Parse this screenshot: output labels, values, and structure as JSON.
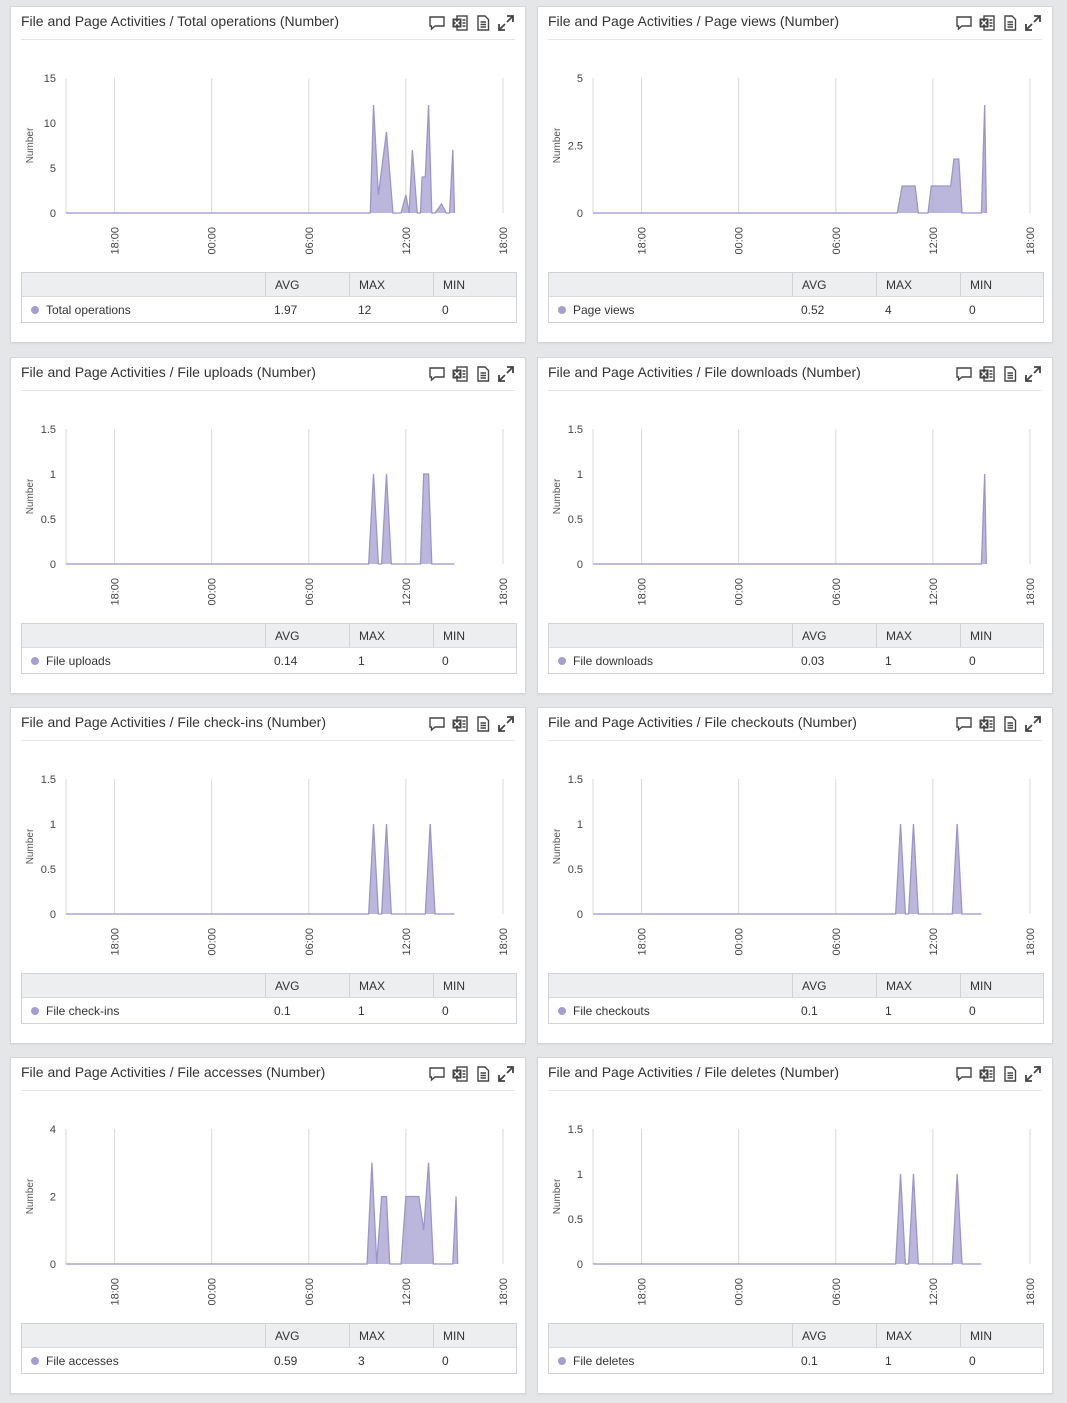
{
  "x_ticks": [
    "18:00",
    "00:00",
    "06:00",
    "12:00",
    "18:00"
  ],
  "legend_headers": {
    "avg": "AVG",
    "max": "MAX",
    "min": "MIN"
  },
  "colors": {
    "series": "#a49fd0",
    "series_line": "#9b95cc",
    "grid": "#d9d9d9"
  },
  "icons": [
    "comment-icon",
    "excel-export-icon",
    "document-icon",
    "expand-icon"
  ],
  "panels": [
    {
      "title": "File and Page Activities / Total operations (Number)",
      "series_name": "Total operations",
      "ylabel": "Number",
      "avg": "1.97",
      "max": "12",
      "min": "0",
      "chart_data": {
        "type": "area",
        "x_unit": "hours since 18:00",
        "x_range": [
          -3,
          24
        ],
        "ylim": [
          0,
          15
        ],
        "yticks": [
          "0",
          "5",
          "10",
          "15"
        ],
        "x": [
          -3,
          15.8,
          16.0,
          16.3,
          16.8,
          17.2,
          17.7,
          18.0,
          18.2,
          18.4,
          18.7,
          18.9,
          19.0,
          19.2,
          19.4,
          19.6,
          19.8,
          20.2,
          20.5,
          20.7,
          20.9,
          21.0
        ],
        "y": [
          0,
          0,
          12,
          2,
          9,
          0,
          0,
          2,
          0,
          7,
          0,
          0,
          4,
          4,
          12,
          0,
          0,
          1,
          0,
          0,
          7,
          0
        ]
      }
    },
    {
      "title": "File and Page Activities / Page views (Number)",
      "series_name": "Page views",
      "ylabel": "Number",
      "avg": "0.52",
      "max": "4",
      "min": "0",
      "chart_data": {
        "type": "area",
        "x_unit": "hours since 18:00",
        "x_range": [
          -3,
          24
        ],
        "ylim": [
          0,
          5
        ],
        "yticks": [
          "0",
          "2.5",
          "5"
        ],
        "x": [
          -3,
          15.8,
          16.1,
          16.9,
          17.1,
          17.7,
          17.9,
          19.1,
          19.3,
          19.6,
          19.8,
          21.0,
          21.2,
          21.3
        ],
        "y": [
          0,
          0,
          1,
          1,
          0,
          0,
          1,
          1,
          2,
          2,
          0,
          0,
          4,
          0
        ]
      }
    },
    {
      "title": "File and Page Activities / File uploads (Number)",
      "series_name": "File uploads",
      "ylabel": "Number",
      "avg": "0.14",
      "max": "1",
      "min": "0",
      "chart_data": {
        "type": "area",
        "x_unit": "hours since 18:00",
        "x_range": [
          -3,
          24
        ],
        "ylim": [
          0,
          1.5
        ],
        "yticks": [
          "0",
          "0.5",
          "1",
          "1.5"
        ],
        "x": [
          -3,
          15.7,
          16.0,
          16.3,
          16.5,
          16.8,
          17.1,
          18.9,
          19.1,
          19.4,
          19.6,
          21.0
        ],
        "y": [
          0,
          0,
          1,
          0,
          0,
          1,
          0,
          0,
          1,
          1,
          0,
          0
        ]
      }
    },
    {
      "title": "File and Page Activities / File downloads (Number)",
      "series_name": "File downloads",
      "ylabel": "Number",
      "avg": "0.03",
      "max": "1",
      "min": "0",
      "chart_data": {
        "type": "area",
        "x_unit": "hours since 18:00",
        "x_range": [
          -3,
          24
        ],
        "ylim": [
          0,
          1.5
        ],
        "yticks": [
          "0",
          "0.5",
          "1",
          "1.5"
        ],
        "x": [
          -3,
          21.0,
          21.2,
          21.3
        ],
        "y": [
          0,
          0,
          1,
          0
        ]
      }
    },
    {
      "title": "File and Page Activities / File check-ins (Number)",
      "series_name": "File check-ins",
      "ylabel": "Number",
      "avg": "0.1",
      "max": "1",
      "min": "0",
      "chart_data": {
        "type": "area",
        "x_unit": "hours since 18:00",
        "x_range": [
          -3,
          24
        ],
        "ylim": [
          0,
          1.5
        ],
        "yticks": [
          "0",
          "0.5",
          "1",
          "1.5"
        ],
        "x": [
          -3,
          15.7,
          16.0,
          16.3,
          16.5,
          16.8,
          17.1,
          19.2,
          19.5,
          19.8,
          21.0
        ],
        "y": [
          0,
          0,
          1,
          0,
          0,
          1,
          0,
          0,
          1,
          0,
          0
        ]
      }
    },
    {
      "title": "File and Page Activities / File checkouts (Number)",
      "series_name": "File checkouts",
      "ylabel": "Number",
      "avg": "0.1",
      "max": "1",
      "min": "0",
      "chart_data": {
        "type": "area",
        "x_unit": "hours since 18:00",
        "x_range": [
          -3,
          24
        ],
        "ylim": [
          0,
          1.5
        ],
        "yticks": [
          "0",
          "0.5",
          "1",
          "1.5"
        ],
        "x": [
          -3,
          15.7,
          16.0,
          16.3,
          16.5,
          16.8,
          17.1,
          19.2,
          19.5,
          19.8,
          21.0
        ],
        "y": [
          0,
          0,
          1,
          0,
          0,
          1,
          0,
          0,
          1,
          0,
          0
        ]
      }
    },
    {
      "title": "File and Page Activities / File accesses (Number)",
      "series_name": "File accesses",
      "ylabel": "Number",
      "avg": "0.59",
      "max": "3",
      "min": "0",
      "chart_data": {
        "type": "area",
        "x_unit": "hours since 18:00",
        "x_range": [
          -3,
          24
        ],
        "ylim": [
          0,
          4
        ],
        "yticks": [
          "0",
          "2",
          "4"
        ],
        "x": [
          -3,
          15.6,
          15.9,
          16.2,
          16.5,
          16.8,
          17.0,
          17.7,
          18.0,
          18.8,
          19.1,
          19.4,
          19.7,
          20.0,
          20.9,
          21.1,
          21.2
        ],
        "y": [
          0,
          0,
          3,
          0,
          2,
          2,
          0,
          0,
          2,
          2,
          1,
          3,
          0,
          0,
          0,
          2,
          0
        ]
      }
    },
    {
      "title": "File and Page Activities / File deletes (Number)",
      "series_name": "File deletes",
      "ylabel": "Number",
      "avg": "0.1",
      "max": "1",
      "min": "0",
      "chart_data": {
        "type": "area",
        "x_unit": "hours since 18:00",
        "x_range": [
          -3,
          24
        ],
        "ylim": [
          0,
          1.5
        ],
        "yticks": [
          "0",
          "0.5",
          "1",
          "1.5"
        ],
        "x": [
          -3,
          15.7,
          16.0,
          16.3,
          16.5,
          16.8,
          17.1,
          19.2,
          19.5,
          19.8,
          21.0
        ],
        "y": [
          0,
          0,
          1,
          0,
          0,
          1,
          0,
          0,
          1,
          0,
          0
        ]
      }
    }
  ]
}
